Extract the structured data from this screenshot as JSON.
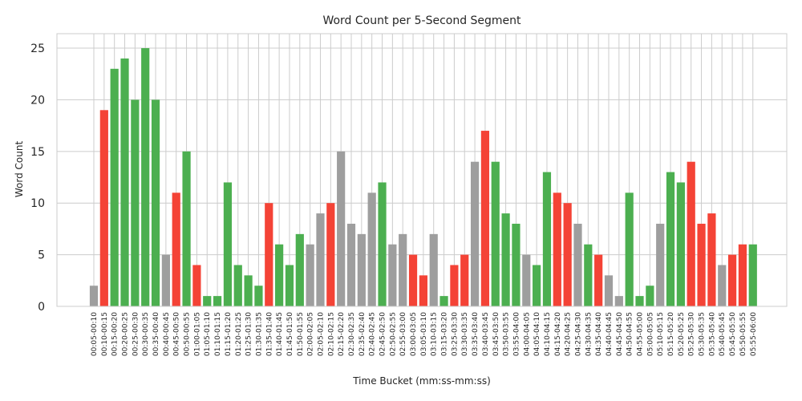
{
  "chart_data": {
    "type": "bar",
    "title": "Word Count per 5-Second Segment",
    "xlabel": "Time Bucket (mm:ss-mm:ss)",
    "ylabel": "Word Count",
    "ylim": [
      0,
      26.4
    ],
    "yticks": [
      0,
      5,
      10,
      15,
      20,
      25
    ],
    "grid": true,
    "colors": {
      "green": "#4caf50",
      "red": "#f44336",
      "gray": "#9e9e9e"
    },
    "categories": [
      "00:05-00:10",
      "00:10-00:15",
      "00:15-00:20",
      "00:20-00:25",
      "00:25-00:30",
      "00:30-00:35",
      "00:35-00:40",
      "00:40-00:45",
      "00:45-00:50",
      "00:50-00:55",
      "01:00-01:05",
      "01:05-01:10",
      "01:10-01:15",
      "01:15-01:20",
      "01:20-01:25",
      "01:25-01:30",
      "01:30-01:35",
      "01:35-01:40",
      "01:40-01:45",
      "01:45-01:50",
      "01:50-01:55",
      "02:00-02:05",
      "02:05-02:10",
      "02:10-02:15",
      "02:15-02:20",
      "02:30-02:35",
      "02:35-02:40",
      "02:40-02:45",
      "02:45-02:50",
      "02:50-02:55",
      "02:55-03:00",
      "03:00-03:05",
      "03:05-03:10",
      "03:10-03:15",
      "03:15-03:20",
      "03:25-03:30",
      "03:30-03:35",
      "03:35-03:40",
      "03:40-03:45",
      "03:45-03:50",
      "03:50-03:55",
      "03:55-04:00",
      "04:00-04:05",
      "04:05-04:10",
      "04:10-04:15",
      "04:15-04:20",
      "04:20-04:25",
      "04:25-04:30",
      "04:30-04:35",
      "04:35-04:40",
      "04:40-04:45",
      "04:45-04:50",
      "04:50-04:55",
      "04:55-05:00",
      "05:00-05:05",
      "05:10-05:15",
      "05:15-05:20",
      "05:20-05:25",
      "05:25-05:30",
      "05:30-05:35",
      "05:35-05:40",
      "05:40-05:45",
      "05:45-05:50",
      "05:50-05:55",
      "05:55-06:00"
    ],
    "values": [
      2,
      19,
      23,
      24,
      20,
      25,
      20,
      5,
      11,
      15,
      4,
      1,
      1,
      12,
      4,
      3,
      2,
      10,
      6,
      4,
      7,
      6,
      9,
      10,
      15,
      8,
      7,
      11,
      12,
      6,
      7,
      5,
      3,
      7,
      1,
      4,
      5,
      14,
      17,
      14,
      9,
      8,
      5,
      4,
      13,
      11,
      10,
      8,
      6,
      5,
      3,
      1,
      11,
      1,
      2,
      8,
      13,
      12,
      14,
      8,
      9,
      4,
      5,
      6,
      6
    ],
    "bar_colors": [
      "gray",
      "red",
      "green",
      "green",
      "green",
      "green",
      "green",
      "gray",
      "red",
      "green",
      "red",
      "green",
      "green",
      "green",
      "green",
      "green",
      "green",
      "red",
      "green",
      "green",
      "green",
      "gray",
      "gray",
      "red",
      "gray",
      "gray",
      "gray",
      "gray",
      "green",
      "gray",
      "gray",
      "red",
      "red",
      "gray",
      "green",
      "red",
      "red",
      "gray",
      "red",
      "green",
      "green",
      "green",
      "gray",
      "green",
      "green",
      "red",
      "red",
      "gray",
      "green",
      "red",
      "gray",
      "gray",
      "green",
      "green",
      "green",
      "gray",
      "green",
      "green",
      "red",
      "red",
      "red",
      "gray",
      "red",
      "red",
      "green"
    ]
  }
}
